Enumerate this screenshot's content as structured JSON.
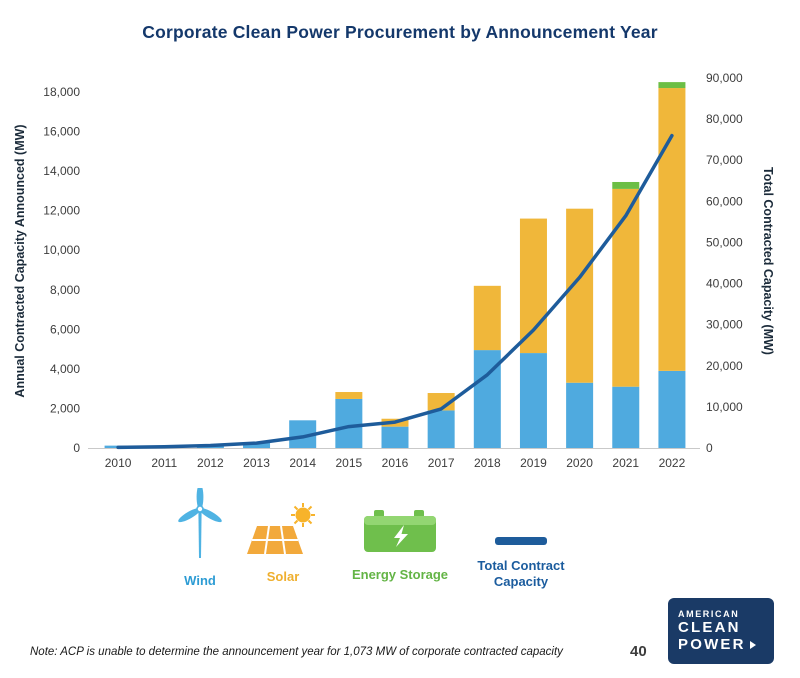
{
  "title": "Corporate Clean Power Procurement by Announcement Year",
  "note": "Note: ACP is unable to determine the announcement year for 1,073 MW of corporate contracted capacity",
  "page_number": "40",
  "logo": {
    "line1": "AMERICAN",
    "line2": "CLEAN",
    "line3": "POWER"
  },
  "legend": {
    "wind": {
      "label": "Wind",
      "color": "#2D9CD4"
    },
    "solar": {
      "label": "Solar",
      "color": "#EFAF2E"
    },
    "storage": {
      "label": "Energy Storage",
      "color": "#63B445"
    },
    "total": {
      "label": "Total Contract Capacity",
      "color": "#1B5C9E"
    }
  },
  "chart_data": {
    "type": "bar",
    "subtype": "stacked-bars-with-line-overlay",
    "title": "Corporate Clean Power Procurement by Announcement Year",
    "categories": [
      "2010",
      "2011",
      "2012",
      "2013",
      "2014",
      "2015",
      "2016",
      "2017",
      "2018",
      "2019",
      "2020",
      "2021",
      "2022"
    ],
    "series": [
      {
        "name": "Wind",
        "color": "#4FAADF",
        "values": [
          120,
          60,
          100,
          280,
          1400,
          2480,
          1080,
          1900,
          4950,
          4800,
          3300,
          3100,
          3900
        ]
      },
      {
        "name": "Solar",
        "color": "#F0B73A",
        "values": [
          0,
          0,
          0,
          0,
          0,
          350,
          400,
          880,
          3250,
          6800,
          8800,
          10000,
          14300
        ]
      },
      {
        "name": "Energy Storage",
        "color": "#6CBE45",
        "values": [
          0,
          0,
          0,
          0,
          0,
          0,
          0,
          0,
          0,
          0,
          0,
          350,
          300
        ]
      }
    ],
    "line": {
      "name": "Total Contract Capacity",
      "color": "#1E5C9B",
      "values": [
        150,
        300,
        600,
        1200,
        2700,
        5200,
        6300,
        9500,
        17800,
        28700,
        41500,
        56500,
        76000
      ]
    },
    "left_axis": {
      "label": "Annual Contracted Capacity Announced (MW)",
      "max": 18000,
      "step": 2000
    },
    "right_axis": {
      "label": "Total Contracted Capacity (MW)",
      "max": 90000,
      "step": 10000
    },
    "grid": false,
    "legend_position": "bottom"
  }
}
